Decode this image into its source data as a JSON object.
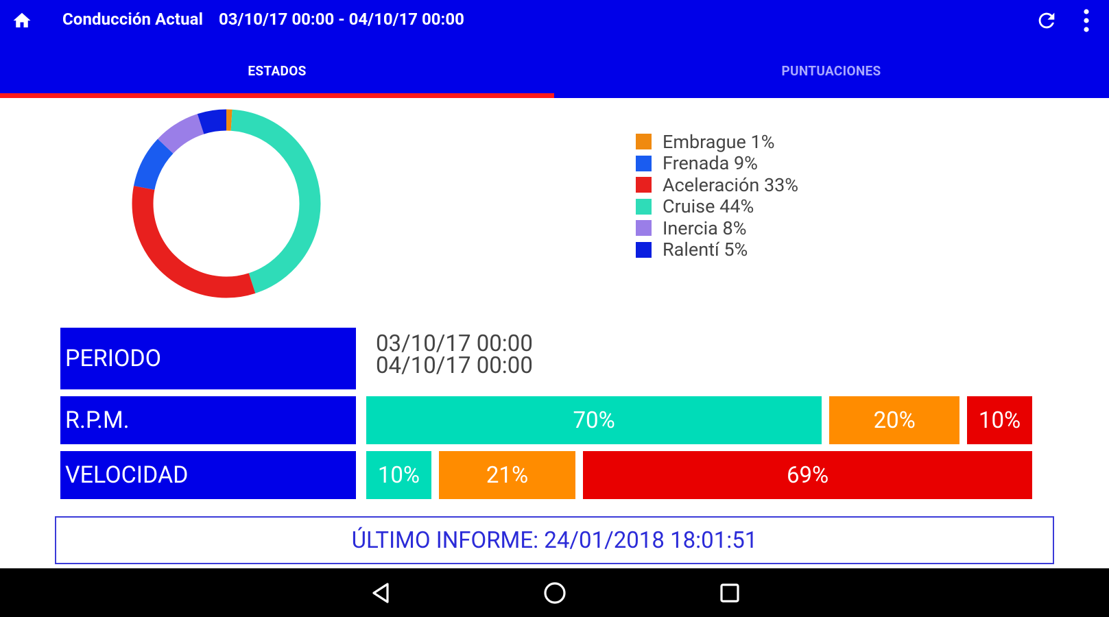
{
  "header": {
    "title": "Conducción Actual",
    "subtitle": "03/10/17 00:00 - 04/10/17 00:00",
    "home_icon": "home-icon",
    "refresh_icon": "refresh-icon",
    "menu_icon": "more-vert-icon"
  },
  "tabs": [
    {
      "label": "ESTADOS",
      "active": true
    },
    {
      "label": "PUNTUACIONES",
      "active": false
    }
  ],
  "chart_data": {
    "type": "pie",
    "slices": [
      {
        "label": "Embrague 1%",
        "value": 1,
        "color": "#f08a0f"
      },
      {
        "label": "Frenada 9%",
        "value": 9,
        "color": "#1a5cf0"
      },
      {
        "label": "Aceleración 33%",
        "value": 33,
        "color": "#e8201e"
      },
      {
        "label": "Cruise 44%",
        "value": 44,
        "color": "#2fdcb8"
      },
      {
        "label": "Inercia 8%",
        "value": 8,
        "color": "#9a7ee8"
      },
      {
        "label": "Ralentí 5%",
        "value": 5,
        "color": "#0a1ee0"
      }
    ],
    "draw_order": [
      "Embrague 1%",
      "Cruise 44%",
      "Aceleración 33%",
      "Frenada 9%",
      "Inercia 8%",
      "Ralentí 5%"
    ]
  },
  "stats": {
    "periodo": {
      "label": "PERIODO",
      "start": "03/10/17 00:00",
      "end": "04/10/17 00:00"
    },
    "rpm": {
      "label": "R.P.M.",
      "segments": [
        {
          "label": "70%",
          "value": 70,
          "color": "#00dcb8"
        },
        {
          "label": "20%",
          "value": 20,
          "color": "#ff8c00"
        },
        {
          "label": "10%",
          "value": 10,
          "color": "#e80000"
        }
      ]
    },
    "velocidad": {
      "label": "VELOCIDAD",
      "segments": [
        {
          "label": "10%",
          "value": 10,
          "color": "#00dcb8"
        },
        {
          "label": "21%",
          "value": 21,
          "color": "#ff8c00"
        },
        {
          "label": "69%",
          "value": 69,
          "color": "#e80000"
        }
      ]
    }
  },
  "report": {
    "text": "ÚLTIMO INFORME: 24/01/2018 18:01:51"
  },
  "navbar": {
    "back_icon": "back-icon",
    "home_icon": "home-circle-icon",
    "recents_icon": "recents-icon"
  },
  "colors": {
    "primary": "#0000e8",
    "accent": "#ff1a1a"
  }
}
